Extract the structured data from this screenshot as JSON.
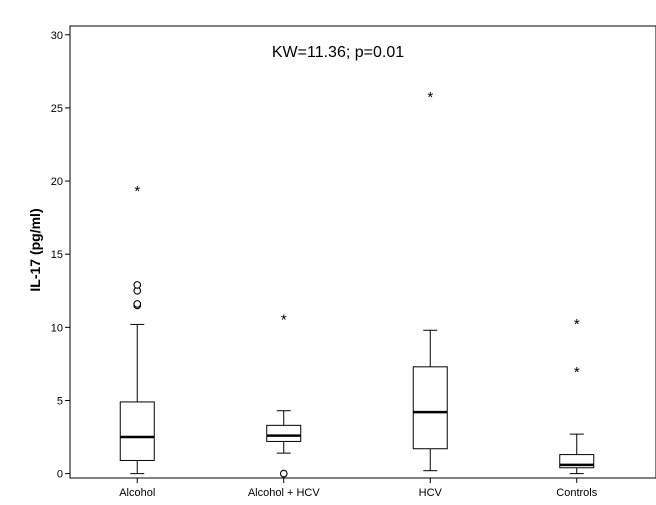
{
  "chart_data": {
    "type": "boxplot",
    "annotation": "KW=11.36; p=0.01",
    "ylabel": "IL-17 (pg/ml)",
    "xlabel": "",
    "ylim": [
      -0.3,
      30.6
    ],
    "yticks": [
      0,
      5,
      10,
      15,
      20,
      25,
      30
    ],
    "categories": [
      "Alcohol",
      "Alcohol + HCV",
      "HCV",
      "Controls"
    ],
    "groups": [
      {
        "label": "Alcohol",
        "whisker_low": 0.0,
        "q1": 0.9,
        "median": 2.5,
        "q3": 4.9,
        "whisker_high": 10.2,
        "outliers_circle": [
          11.5,
          11.6,
          12.5,
          12.9
        ],
        "outliers_star": [
          19.4
        ]
      },
      {
        "label": "Alcohol + HCV",
        "whisker_low": 1.4,
        "q1": 2.2,
        "median": 2.6,
        "q3": 3.3,
        "whisker_high": 4.3,
        "outliers_circle": [
          0.0
        ],
        "outliers_star": [
          10.6
        ]
      },
      {
        "label": "HCV",
        "whisker_low": 0.2,
        "q1": 1.7,
        "median": 4.2,
        "q3": 7.3,
        "whisker_high": 9.8,
        "outliers_circle": [],
        "outliers_star": [
          25.8
        ]
      },
      {
        "label": "Controls",
        "whisker_low": 0.0,
        "q1": 0.4,
        "median": 0.6,
        "q3": 1.3,
        "whisker_high": 2.7,
        "outliers_circle": [],
        "outliers_star": [
          7.0,
          10.3
        ]
      }
    ],
    "grid": false,
    "legend": "none"
  }
}
